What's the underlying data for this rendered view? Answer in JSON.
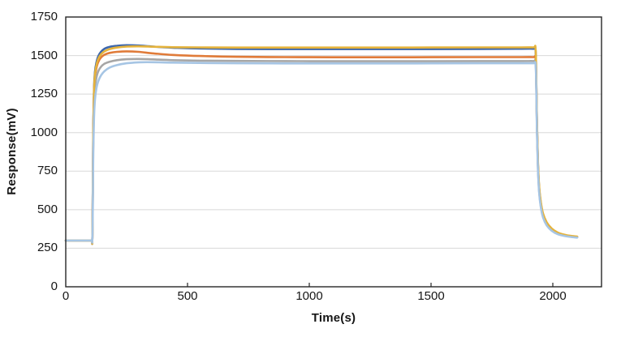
{
  "chart_data": {
    "type": "line",
    "title": "",
    "xlabel": "Time(s)",
    "ylabel": "Response(mV)",
    "xlim": [
      0,
      2200
    ],
    "ylim": [
      0,
      1750
    ],
    "xticks": [
      0,
      500,
      1000,
      1500,
      2000
    ],
    "yticks": [
      0,
      250,
      500,
      750,
      1000,
      1250,
      1500,
      1750
    ],
    "grid": "horizontal",
    "legend": "none",
    "axis_color": "#262626",
    "grid_color": "#d8d8d8",
    "background": "#ffffff",
    "series": [
      {
        "name": "dark-blue",
        "color": "#3D67AC",
        "points": [
          [
            0,
            300
          ],
          [
            80,
            300
          ],
          [
            105,
            300
          ],
          [
            109,
            302
          ],
          [
            111,
            620
          ],
          [
            113,
            1040
          ],
          [
            116,
            1280
          ],
          [
            120,
            1395
          ],
          [
            126,
            1455
          ],
          [
            134,
            1497
          ],
          [
            145,
            1525
          ],
          [
            160,
            1545
          ],
          [
            180,
            1556
          ],
          [
            210,
            1563
          ],
          [
            250,
            1567
          ],
          [
            300,
            1565
          ],
          [
            360,
            1558
          ],
          [
            440,
            1551
          ],
          [
            550,
            1546
          ],
          [
            700,
            1543
          ],
          [
            900,
            1542
          ],
          [
            1100,
            1542
          ],
          [
            1400,
            1542
          ],
          [
            1700,
            1543
          ],
          [
            1870,
            1544
          ],
          [
            1920,
            1544
          ],
          [
            1929,
            1539
          ],
          [
            1932,
            1350
          ],
          [
            1935,
            1050
          ],
          [
            1939,
            800
          ],
          [
            1944,
            640
          ],
          [
            1951,
            540
          ],
          [
            1960,
            468
          ],
          [
            1975,
            412
          ],
          [
            1995,
            374
          ],
          [
            2020,
            348
          ],
          [
            2050,
            334
          ],
          [
            2075,
            327
          ],
          [
            2100,
            323
          ]
        ]
      },
      {
        "name": "orange",
        "color": "#E07B39",
        "points": [
          [
            0,
            300
          ],
          [
            80,
            300
          ],
          [
            105,
            300
          ],
          [
            109,
            302
          ],
          [
            111,
            600
          ],
          [
            113,
            1010
          ],
          [
            116,
            1250
          ],
          [
            120,
            1362
          ],
          [
            126,
            1420
          ],
          [
            134,
            1460
          ],
          [
            145,
            1488
          ],
          [
            160,
            1506
          ],
          [
            180,
            1517
          ],
          [
            210,
            1524
          ],
          [
            250,
            1527
          ],
          [
            300,
            1524
          ],
          [
            360,
            1514
          ],
          [
            440,
            1504
          ],
          [
            550,
            1497
          ],
          [
            700,
            1492
          ],
          [
            900,
            1490
          ],
          [
            1100,
            1489
          ],
          [
            1400,
            1489
          ],
          [
            1700,
            1490
          ],
          [
            1870,
            1490
          ],
          [
            1920,
            1490
          ],
          [
            1929,
            1485
          ],
          [
            1932,
            1335
          ],
          [
            1935,
            1035
          ],
          [
            1939,
            790
          ],
          [
            1944,
            632
          ],
          [
            1951,
            533
          ],
          [
            1960,
            463
          ],
          [
            1975,
            409
          ],
          [
            1995,
            372
          ],
          [
            2020,
            346
          ],
          [
            2050,
            333
          ],
          [
            2075,
            326
          ],
          [
            2100,
            322
          ]
        ]
      },
      {
        "name": "gray",
        "color": "#A6A6A6",
        "points": [
          [
            0,
            300
          ],
          [
            80,
            300
          ],
          [
            105,
            300
          ],
          [
            109,
            302
          ],
          [
            111,
            550
          ],
          [
            113,
            955
          ],
          [
            116,
            1175
          ],
          [
            120,
            1295
          ],
          [
            126,
            1358
          ],
          [
            134,
            1400
          ],
          [
            145,
            1428
          ],
          [
            160,
            1448
          ],
          [
            180,
            1460
          ],
          [
            210,
            1470
          ],
          [
            250,
            1476
          ],
          [
            300,
            1478
          ],
          [
            360,
            1475
          ],
          [
            440,
            1470
          ],
          [
            550,
            1467
          ],
          [
            700,
            1465
          ],
          [
            900,
            1464
          ],
          [
            1100,
            1463
          ],
          [
            1400,
            1463
          ],
          [
            1700,
            1464
          ],
          [
            1870,
            1464
          ],
          [
            1920,
            1464
          ],
          [
            1929,
            1459
          ],
          [
            1932,
            1315
          ],
          [
            1935,
            1015
          ],
          [
            1939,
            772
          ],
          [
            1944,
            618
          ],
          [
            1951,
            522
          ],
          [
            1960,
            455
          ],
          [
            1975,
            403
          ],
          [
            1995,
            368
          ],
          [
            2020,
            344
          ],
          [
            2050,
            331
          ],
          [
            2075,
            325
          ],
          [
            2100,
            321
          ]
        ]
      },
      {
        "name": "yellow",
        "color": "#E5B33C",
        "points": [
          [
            0,
            300
          ],
          [
            80,
            300
          ],
          [
            105,
            300
          ],
          [
            109,
            302
          ],
          [
            111,
            610
          ],
          [
            113,
            1025
          ],
          [
            116,
            1265
          ],
          [
            120,
            1378
          ],
          [
            126,
            1438
          ],
          [
            134,
            1480
          ],
          [
            145,
            1508
          ],
          [
            160,
            1528
          ],
          [
            180,
            1542
          ],
          [
            210,
            1552
          ],
          [
            250,
            1558
          ],
          [
            300,
            1560
          ],
          [
            360,
            1557
          ],
          [
            440,
            1554
          ],
          [
            550,
            1553
          ],
          [
            700,
            1552
          ],
          [
            900,
            1552
          ],
          [
            1100,
            1552
          ],
          [
            1400,
            1552
          ],
          [
            1700,
            1553
          ],
          [
            1870,
            1553
          ],
          [
            1920,
            1553
          ],
          [
            1929,
            1548
          ],
          [
            1932,
            1362
          ],
          [
            1935,
            1062
          ],
          [
            1939,
            812
          ],
          [
            1944,
            650
          ],
          [
            1951,
            548
          ],
          [
            1960,
            475
          ],
          [
            1975,
            418
          ],
          [
            1995,
            379
          ],
          [
            2020,
            352
          ],
          [
            2050,
            337
          ],
          [
            2075,
            330
          ],
          [
            2100,
            326
          ]
        ]
      },
      {
        "name": "light-blue",
        "color": "#A6C5E4",
        "points": [
          [
            0,
            300
          ],
          [
            80,
            300
          ],
          [
            105,
            300
          ],
          [
            109,
            302
          ],
          [
            111,
            510
          ],
          [
            113,
            885
          ],
          [
            116,
            1095
          ],
          [
            120,
            1215
          ],
          [
            126,
            1288
          ],
          [
            134,
            1336
          ],
          [
            145,
            1372
          ],
          [
            160,
            1400
          ],
          [
            180,
            1422
          ],
          [
            210,
            1438
          ],
          [
            250,
            1450
          ],
          [
            300,
            1456
          ],
          [
            360,
            1457
          ],
          [
            440,
            1454
          ],
          [
            550,
            1452
          ],
          [
            700,
            1450
          ],
          [
            900,
            1449
          ],
          [
            1100,
            1449
          ],
          [
            1400,
            1449
          ],
          [
            1700,
            1450
          ],
          [
            1870,
            1450
          ],
          [
            1920,
            1450
          ],
          [
            1929,
            1445
          ],
          [
            1932,
            1295
          ],
          [
            1935,
            995
          ],
          [
            1939,
            758
          ],
          [
            1944,
            608
          ],
          [
            1951,
            514
          ],
          [
            1960,
            449
          ],
          [
            1975,
            398
          ],
          [
            1995,
            364
          ],
          [
            2020,
            341
          ],
          [
            2050,
            329
          ],
          [
            2075,
            323
          ],
          [
            2100,
            319
          ]
        ]
      }
    ]
  }
}
